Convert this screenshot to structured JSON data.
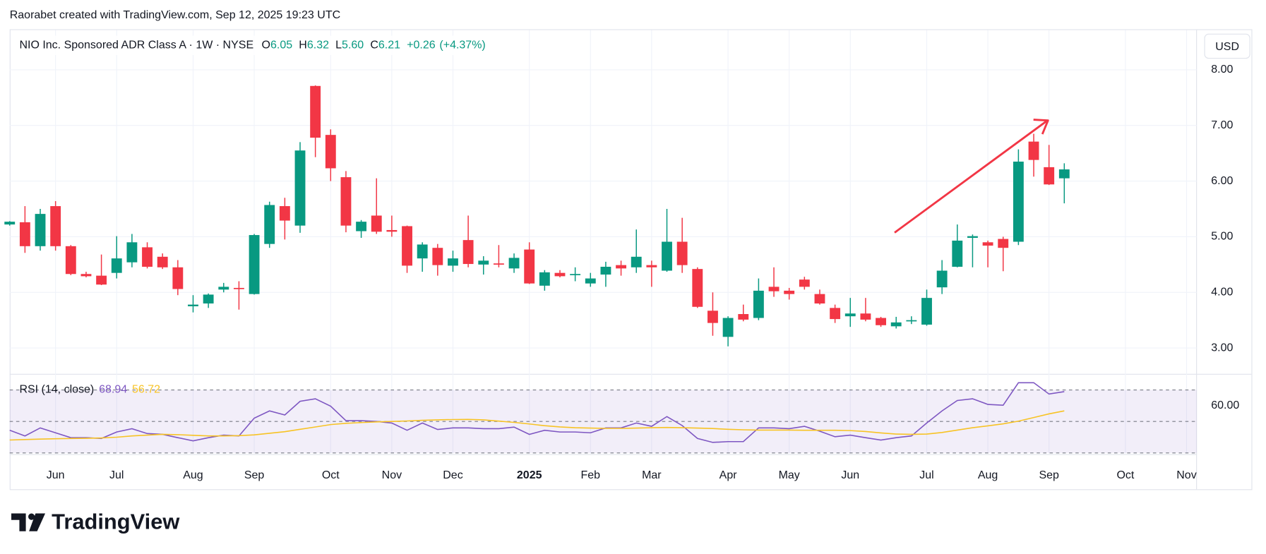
{
  "header": "Raorabet created with TradingView.com, Sep 12, 2025 19:23 UTC",
  "currency": "USD",
  "logo": "TradingView",
  "chart_data": [
    {
      "type": "candlestick",
      "title": "NIO Inc. Sponsored ADR Class A · 1W · NYSE",
      "ohlc_legend": [
        {
          "key": "O",
          "value": 6.05,
          "label": "6.05"
        },
        {
          "key": "H",
          "value": 6.32,
          "label": "6.32"
        },
        {
          "key": "L",
          "value": 5.6,
          "label": "5.60"
        },
        {
          "key": "C",
          "value": 6.21,
          "label": "6.21"
        }
      ],
      "change": {
        "value": 0.26,
        "label": "+0.26"
      },
      "change_pct": {
        "value": 4.37,
        "label": "(+4.37%)"
      },
      "categories": [
        null,
        null,
        null,
        "Jun",
        null,
        null,
        null,
        "Jul",
        null,
        null,
        null,
        null,
        "Aug",
        null,
        null,
        null,
        "Sep",
        null,
        null,
        null,
        null,
        "Oct",
        null,
        null,
        null,
        "Nov",
        null,
        null,
        null,
        "Dec",
        null,
        null,
        null,
        null,
        "2025",
        null,
        null,
        null,
        "Feb",
        null,
        null,
        null,
        "Mar",
        null,
        null,
        null,
        null,
        "Apr",
        null,
        null,
        null,
        "May",
        null,
        null,
        null,
        "Jun",
        null,
        null,
        null,
        null,
        "Jul",
        null,
        null,
        null,
        "Aug",
        null,
        null,
        null,
        "Sep",
        null,
        null,
        null,
        null,
        "Oct",
        null,
        null,
        null,
        "Nov",
        null
      ],
      "open": [
        5.22,
        5.26,
        4.83,
        5.55,
        4.83,
        4.33,
        4.3,
        4.35,
        4.54,
        4.81,
        4.64,
        4.45,
        3.75,
        3.8,
        4.05,
        4.08,
        3.97,
        4.87,
        5.55,
        5.2,
        7.71,
        6.83,
        6.07,
        5.1,
        5.38,
        5.12,
        5.19,
        4.61,
        4.8,
        4.48,
        4.94,
        4.5,
        4.52,
        4.43,
        4.77,
        4.12,
        4.35,
        4.31,
        4.16,
        4.32,
        4.49,
        4.45,
        4.49,
        4.39,
        4.91,
        4.42,
        3.67,
        3.2,
        3.61,
        3.54,
        4.1,
        4.03,
        4.23,
        3.97,
        3.72,
        3.57,
        3.62,
        3.54,
        3.39,
        3.48,
        3.42,
        4.09,
        4.46,
        4.98,
        4.9,
        4.96,
        4.91,
        6.71,
        6.25,
        6.05,
        null,
        null,
        null,
        null,
        null,
        null,
        null,
        null,
        null
      ],
      "high": [
        5.28,
        5.55,
        5.5,
        5.64,
        4.85,
        4.37,
        4.68,
        5.01,
        5.05,
        4.9,
        4.7,
        4.58,
        3.95,
        3.98,
        4.17,
        4.2,
        5.05,
        5.63,
        5.7,
        6.7,
        7.72,
        6.93,
        6.18,
        5.3,
        6.05,
        5.38,
        5.2,
        4.9,
        4.87,
        4.75,
        5.38,
        4.65,
        4.85,
        4.7,
        4.9,
        4.4,
        4.4,
        4.45,
        4.35,
        4.55,
        4.57,
        5.13,
        4.57,
        5.5,
        5.34,
        4.45,
        4.0,
        3.57,
        3.78,
        4.25,
        4.45,
        4.08,
        4.28,
        4.05,
        3.78,
        3.9,
        3.9,
        3.56,
        3.56,
        3.57,
        4.05,
        4.58,
        5.22,
        5.04,
        4.93,
        5.0,
        6.57,
        6.85,
        6.65,
        6.32,
        null,
        null,
        null,
        null,
        null,
        null,
        null,
        null,
        null
      ],
      "low": [
        5.2,
        4.71,
        4.75,
        4.75,
        4.31,
        4.27,
        4.13,
        4.25,
        4.45,
        4.43,
        4.42,
        3.95,
        3.64,
        3.72,
        4.0,
        3.69,
        3.96,
        4.8,
        4.95,
        5.07,
        6.43,
        6.0,
        5.08,
        4.98,
        5.05,
        5.0,
        4.35,
        4.37,
        4.3,
        4.37,
        4.45,
        4.32,
        4.45,
        4.35,
        4.15,
        4.03,
        4.27,
        4.2,
        4.1,
        4.1,
        4.3,
        4.35,
        4.1,
        4.37,
        4.35,
        3.72,
        3.22,
        3.03,
        3.48,
        3.5,
        3.92,
        3.87,
        4.05,
        3.78,
        3.45,
        3.38,
        3.48,
        3.38,
        3.35,
        3.43,
        3.4,
        3.97,
        4.45,
        4.45,
        4.45,
        4.38,
        4.85,
        6.08,
        5.93,
        5.6,
        null,
        null,
        null,
        null,
        null,
        null,
        null,
        null,
        null
      ],
      "close": [
        5.27,
        4.83,
        5.41,
        4.83,
        4.33,
        4.29,
        4.14,
        4.61,
        4.9,
        4.46,
        4.45,
        4.06,
        3.78,
        3.96,
        4.1,
        4.06,
        5.03,
        5.57,
        5.29,
        6.55,
        6.78,
        6.23,
        5.2,
        5.27,
        5.09,
        5.09,
        4.48,
        4.86,
        4.49,
        4.61,
        4.51,
        4.57,
        4.5,
        4.62,
        4.16,
        4.36,
        4.29,
        4.33,
        4.25,
        4.46,
        4.43,
        4.64,
        4.45,
        4.91,
        4.49,
        3.74,
        3.45,
        3.54,
        3.51,
        4.03,
        4.02,
        3.97,
        4.1,
        3.8,
        3.52,
        3.62,
        3.51,
        3.41,
        3.46,
        3.5,
        3.9,
        4.39,
        4.93,
        5.01,
        4.84,
        4.8,
        6.35,
        6.38,
        5.94,
        6.21,
        null,
        null,
        null,
        null,
        null,
        null,
        null,
        null,
        null
      ],
      "up_color": "#089981",
      "down_color": "#f23645",
      "ylim": [
        2.55,
        8.7
      ],
      "yticks": [
        {
          "value": 3,
          "label": "3.00"
        },
        {
          "value": 4,
          "label": "4.00"
        },
        {
          "value": 5,
          "label": "5.00"
        },
        {
          "value": 6,
          "label": "6.00"
        },
        {
          "value": 7,
          "label": "7.00"
        },
        {
          "value": 8,
          "label": "8.00"
        }
      ],
      "grid": true
    },
    {
      "type": "line",
      "series": [
        {
          "name": "RSI (14, close)",
          "color": "#7e57c2",
          "values": [
            44.4,
            40.8,
            45.9,
            42.8,
            39.7,
            39.7,
            39.2,
            43.3,
            45.4,
            42.3,
            41.8,
            39.7,
            37.7,
            39.7,
            41.3,
            40.8,
            52.1,
            56.7,
            54.1,
            62.8,
            64.4,
            59.7,
            50.5,
            50.5,
            50.0,
            49.0,
            44.4,
            49.0,
            44.9,
            45.9,
            45.9,
            45.4,
            45.4,
            46.4,
            41.8,
            44.4,
            43.3,
            43.3,
            42.8,
            45.9,
            45.9,
            49.0,
            46.9,
            53.1,
            47.4,
            39.2,
            36.7,
            37.2,
            37.2,
            45.9,
            45.9,
            45.4,
            46.9,
            43.8,
            40.3,
            41.3,
            39.7,
            38.2,
            39.7,
            40.8,
            49.0,
            56.7,
            63.3,
            64.4,
            60.8,
            60.3,
            74.6,
            74.6,
            67.4,
            68.94,
            null,
            null,
            null,
            null,
            null,
            null,
            null,
            null,
            null
          ]
        },
        {
          "color": "#f7c325",
          "values": [
            38.2,
            38.5,
            38.8,
            39.0,
            39.2,
            39.3,
            39.5,
            40.0,
            40.8,
            41.3,
            41.8,
            41.6,
            41.2,
            40.8,
            40.8,
            41.0,
            41.5,
            42.5,
            43.5,
            45.0,
            46.5,
            48.0,
            48.8,
            49.3,
            49.7,
            50.0,
            50.3,
            50.7,
            51.0,
            51.2,
            51.3,
            51.0,
            50.2,
            49.4,
            48.4,
            47.3,
            46.5,
            46.0,
            45.8,
            45.6,
            45.6,
            45.8,
            46.0,
            46.2,
            46.0,
            45.8,
            45.5,
            45.0,
            44.7,
            44.5,
            44.5,
            44.5,
            44.4,
            44.4,
            44.4,
            44.2,
            43.6,
            42.7,
            42.0,
            41.8,
            42.0,
            43.0,
            44.5,
            46.0,
            47.2,
            48.5,
            50.2,
            52.5,
            54.8,
            56.72,
            null,
            null,
            null,
            null,
            null,
            null,
            null,
            null,
            null
          ]
        }
      ],
      "levels": [
        70,
        50,
        30
      ],
      "ylim": [
        29.5,
        79.2
      ],
      "yticks": [
        {
          "value": 60,
          "label": "60.00"
        }
      ]
    }
  ]
}
